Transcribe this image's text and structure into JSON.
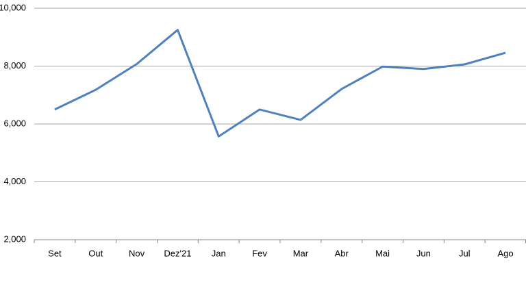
{
  "chart_data": {
    "type": "line",
    "categories": [
      "Set",
      "Out",
      "Nov",
      "Dez'21",
      "Jan",
      "Fev",
      "Mar",
      "Abr",
      "Mai",
      "Jun",
      "Jul",
      "Ago"
    ],
    "series": [
      {
        "color": "#4f81bd",
        "values": [
          6500,
          7180,
          8070,
          9250,
          5570,
          6500,
          6140,
          7210,
          7980,
          7900,
          8060,
          8460
        ]
      }
    ],
    "ylim": [
      2000,
      10000
    ],
    "yticks": [
      {
        "value": 2000,
        "label": "2,000"
      },
      {
        "value": 4000,
        "label": "4,000"
      },
      {
        "value": 6000,
        "label": "6,000"
      },
      {
        "value": 8000,
        "label": "8,000"
      },
      {
        "value": 10000,
        "label": "10,000"
      }
    ],
    "grid": true
  }
}
